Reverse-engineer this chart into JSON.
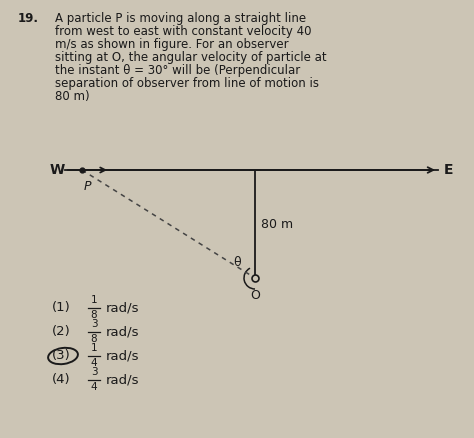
{
  "background_color": "#ccc5b5",
  "question_number": "19.",
  "question_text_lines": [
    "A particle P is moving along a straight line",
    "from west to east with constant velocity 40",
    "m/s as shown in figure. For an observer",
    "sitting at O, the angular velocity of particle at",
    "the instant θ = 30° will be (Perpendicular",
    "separation of observer from line of motion is",
    "80 m)"
  ],
  "W_label": "W",
  "E_label": "E",
  "P_label": "P",
  "O_label": "O",
  "dist_label": "80 m",
  "theta_label": "θ",
  "options": [
    {
      "num": "(1)",
      "frac_num": "1",
      "frac_den": "8",
      "unit": "rad/s"
    },
    {
      "num": "(2)",
      "frac_num": "3",
      "frac_den": "8",
      "unit": "rad/s"
    },
    {
      "num": "(3)",
      "frac_num": "1",
      "frac_den": "4",
      "unit": "rad/s"
    },
    {
      "num": "(4)",
      "frac_num": "3",
      "frac_den": "4",
      "unit": "rad/s"
    }
  ],
  "circle_option": 3,
  "text_color": "#1a1a1a",
  "line_color": "#1a1a1a",
  "dashed_color": "#444444",
  "font_size_question": 8.5,
  "font_size_labels": 9,
  "font_size_options": 9.5
}
